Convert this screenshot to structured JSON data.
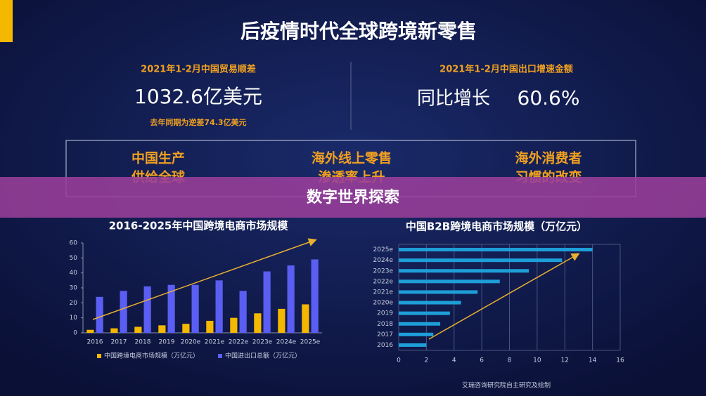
{
  "header": {
    "title": "后疫情时代全球跨境新零售"
  },
  "stats": [
    {
      "label": "2021年1-2月中国贸易顺差",
      "value": "1032.6亿美元",
      "note": "去年同期为逆差74.3亿美元"
    },
    {
      "label": "2021年1-2月中国出口增速金额",
      "prefix": "同比增长",
      "value": "60.6%"
    }
  ],
  "highlights": [
    {
      "line1": "中国生产",
      "line2": "供给全球"
    },
    {
      "line1": "海外线上零售",
      "line2": "渗透率上升"
    },
    {
      "line1": "海外消费者",
      "line2": "习惯的改变"
    }
  ],
  "banner": "数字世界探索",
  "chart_data": [
    {
      "type": "bar",
      "title": "2016-2025年中国跨境电商市场规模",
      "categories": [
        "2016",
        "2017",
        "2018",
        "2019",
        "2020e",
        "2021e",
        "2022e",
        "2023e",
        "2024e",
        "2025e"
      ],
      "series": [
        {
          "name": "中国跨境电商市场规模（万亿元）",
          "color": "#f5b800",
          "values": [
            2,
            3,
            4,
            5,
            6,
            8,
            10,
            13,
            16,
            19
          ]
        },
        {
          "name": "中国进出口总额（万亿元）",
          "color": "#5a5ef2",
          "values": [
            24,
            28,
            31,
            32,
            32,
            35,
            28,
            41,
            45,
            49
          ]
        }
      ],
      "ylim": [
        0,
        60
      ],
      "yticks": [
        0,
        10,
        20,
        30,
        40,
        50,
        60
      ],
      "grid": false
    },
    {
      "type": "bar",
      "orientation": "horizontal",
      "title": "中国B2B跨境电商市场规模（万亿元）",
      "categories": [
        "2016",
        "2017",
        "2018",
        "2019",
        "2020e",
        "2021e",
        "2022e",
        "2023e",
        "2024e",
        "2025e"
      ],
      "values": [
        2,
        2.5,
        3,
        3.7,
        4.5,
        5.7,
        7.3,
        9.4,
        11.8,
        14
      ],
      "color": "#1e9fd8",
      "xlim": [
        0,
        16
      ],
      "xticks": [
        0,
        2,
        4,
        6,
        8,
        10,
        12,
        14,
        16
      ],
      "grid": true
    }
  ],
  "source": "艾瑞咨询研究院自主研究及绘制"
}
